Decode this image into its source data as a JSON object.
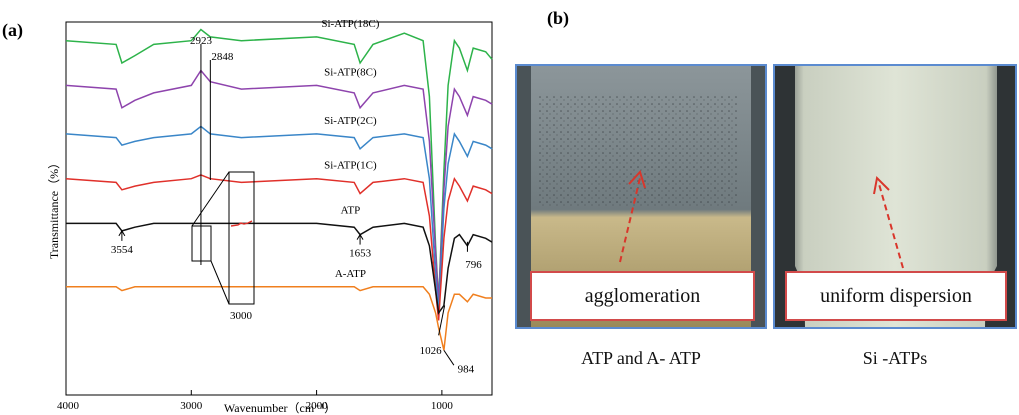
{
  "panel_a_label": "(a)",
  "panel_b_label": "(b)",
  "colors": {
    "Si-ATP(18C)": "#2db34a",
    "Si-ATP(8C)": "#8e44ad",
    "Si-ATP(2C)": "#3a86c8",
    "Si-ATP(1C)": "#e0302a",
    "ATP": "#111111",
    "A-ATP": "#f07f1e",
    "photo_border": "#5b8bd0",
    "callout_border": "#d24a4a"
  },
  "chart_data": {
    "type": "line",
    "xlabel": "Wavenumber（cm⁻¹）",
    "ylabel": "Transmittance（%）",
    "xlim": [
      4000,
      600
    ],
    "x_ticks": [
      "4000",
      "3000",
      "2000",
      "1000"
    ],
    "y_ticks_shown": false,
    "series": [
      {
        "name": "Si-ATP(18C)",
        "values": [
          [
            4000,
            0.95
          ],
          [
            3600,
            0.94
          ],
          [
            3554,
            0.89
          ],
          [
            3450,
            0.91
          ],
          [
            3300,
            0.94
          ],
          [
            3000,
            0.95
          ],
          [
            2923,
            0.98
          ],
          [
            2848,
            0.96
          ],
          [
            2600,
            0.95
          ],
          [
            2000,
            0.96
          ],
          [
            1700,
            0.94
          ],
          [
            1653,
            0.89
          ],
          [
            1550,
            0.94
          ],
          [
            1300,
            0.97
          ],
          [
            1150,
            0.95
          ],
          [
            1100,
            0.8
          ],
          [
            1050,
            0.4
          ],
          [
            1026,
            0.25
          ],
          [
            984,
            0.6
          ],
          [
            950,
            0.83
          ],
          [
            900,
            0.95
          ],
          [
            860,
            0.93
          ],
          [
            796,
            0.87
          ],
          [
            750,
            0.93
          ],
          [
            650,
            0.92
          ],
          [
            600,
            0.9
          ]
        ]
      },
      {
        "name": "Si-ATP(8C)",
        "values": [
          [
            4000,
            0.83
          ],
          [
            3600,
            0.82
          ],
          [
            3554,
            0.77
          ],
          [
            3450,
            0.79
          ],
          [
            3300,
            0.81
          ],
          [
            3000,
            0.83
          ],
          [
            2923,
            0.87
          ],
          [
            2848,
            0.84
          ],
          [
            2600,
            0.82
          ],
          [
            2000,
            0.83
          ],
          [
            1700,
            0.81
          ],
          [
            1653,
            0.77
          ],
          [
            1550,
            0.81
          ],
          [
            1300,
            0.83
          ],
          [
            1150,
            0.82
          ],
          [
            1100,
            0.68
          ],
          [
            1050,
            0.38
          ],
          [
            1026,
            0.25
          ],
          [
            984,
            0.55
          ],
          [
            950,
            0.72
          ],
          [
            900,
            0.82
          ],
          [
            860,
            0.8
          ],
          [
            796,
            0.75
          ],
          [
            750,
            0.8
          ],
          [
            650,
            0.79
          ],
          [
            600,
            0.78
          ]
        ]
      },
      {
        "name": "Si-ATP(2C)",
        "values": [
          [
            4000,
            0.7
          ],
          [
            3600,
            0.69
          ],
          [
            3554,
            0.67
          ],
          [
            3450,
            0.68
          ],
          [
            3300,
            0.69
          ],
          [
            3000,
            0.7
          ],
          [
            2923,
            0.72
          ],
          [
            2848,
            0.7
          ],
          [
            2600,
            0.69
          ],
          [
            2000,
            0.7
          ],
          [
            1700,
            0.69
          ],
          [
            1653,
            0.66
          ],
          [
            1550,
            0.69
          ],
          [
            1300,
            0.7
          ],
          [
            1150,
            0.69
          ],
          [
            1100,
            0.58
          ],
          [
            1050,
            0.32
          ],
          [
            1026,
            0.22
          ],
          [
            984,
            0.5
          ],
          [
            950,
            0.62
          ],
          [
            900,
            0.7
          ],
          [
            860,
            0.68
          ],
          [
            796,
            0.64
          ],
          [
            750,
            0.68
          ],
          [
            650,
            0.67
          ],
          [
            600,
            0.66
          ]
        ]
      },
      {
        "name": "Si-ATP(1C)",
        "values": [
          [
            4000,
            0.58
          ],
          [
            3600,
            0.57
          ],
          [
            3554,
            0.55
          ],
          [
            3450,
            0.56
          ],
          [
            3300,
            0.57
          ],
          [
            3000,
            0.58
          ],
          [
            2923,
            0.59
          ],
          [
            2848,
            0.58
          ],
          [
            2600,
            0.57
          ],
          [
            2000,
            0.58
          ],
          [
            1700,
            0.57
          ],
          [
            1653,
            0.54
          ],
          [
            1550,
            0.57
          ],
          [
            1300,
            0.58
          ],
          [
            1150,
            0.57
          ],
          [
            1100,
            0.48
          ],
          [
            1050,
            0.28
          ],
          [
            1026,
            0.2
          ],
          [
            984,
            0.42
          ],
          [
            950,
            0.52
          ],
          [
            900,
            0.58
          ],
          [
            860,
            0.56
          ],
          [
            796,
            0.52
          ],
          [
            750,
            0.56
          ],
          [
            650,
            0.55
          ],
          [
            600,
            0.54
          ]
        ]
      },
      {
        "name": "ATP",
        "values": [
          [
            4000,
            0.46
          ],
          [
            3600,
            0.46
          ],
          [
            3554,
            0.44
          ],
          [
            3450,
            0.45
          ],
          [
            3300,
            0.46
          ],
          [
            3000,
            0.46
          ],
          [
            2923,
            0.46
          ],
          [
            2848,
            0.46
          ],
          [
            2600,
            0.46
          ],
          [
            2000,
            0.46
          ],
          [
            1700,
            0.45
          ],
          [
            1653,
            0.43
          ],
          [
            1550,
            0.45
          ],
          [
            1300,
            0.46
          ],
          [
            1150,
            0.45
          ],
          [
            1100,
            0.4
          ],
          [
            1050,
            0.28
          ],
          [
            1026,
            0.22
          ],
          [
            984,
            0.24
          ],
          [
            950,
            0.34
          ],
          [
            900,
            0.42
          ],
          [
            860,
            0.43
          ],
          [
            796,
            0.4
          ],
          [
            750,
            0.43
          ],
          [
            650,
            0.42
          ],
          [
            600,
            0.41
          ]
        ]
      },
      {
        "name": "A-ATP",
        "values": [
          [
            4000,
            0.29
          ],
          [
            3600,
            0.29
          ],
          [
            3554,
            0.28
          ],
          [
            3450,
            0.29
          ],
          [
            3300,
            0.29
          ],
          [
            3000,
            0.29
          ],
          [
            2923,
            0.29
          ],
          [
            2848,
            0.29
          ],
          [
            2600,
            0.29
          ],
          [
            2000,
            0.29
          ],
          [
            1700,
            0.29
          ],
          [
            1653,
            0.28
          ],
          [
            1550,
            0.29
          ],
          [
            1300,
            0.29
          ],
          [
            1150,
            0.29
          ],
          [
            1100,
            0.27
          ],
          [
            1050,
            0.22
          ],
          [
            1026,
            0.18
          ],
          [
            984,
            0.12
          ],
          [
            950,
            0.22
          ],
          [
            900,
            0.27
          ],
          [
            860,
            0.27
          ],
          [
            796,
            0.25
          ],
          [
            750,
            0.27
          ],
          [
            650,
            0.26
          ],
          [
            600,
            0.26
          ]
        ]
      }
    ],
    "series_labels": [
      "Si-ATP(18C)",
      "Si-ATP(8C)",
      "Si-ATP(2C)",
      "Si-ATP(1C)",
      "ATP",
      "A-ATP"
    ],
    "annotations": [
      "2923",
      "2848",
      "3554",
      "1653",
      "3000",
      "796",
      "1026",
      "984"
    ]
  },
  "photos": {
    "left": {
      "callout": "agglomeration",
      "caption": "ATP and A- ATP"
    },
    "right": {
      "callout": "uniform dispersion",
      "caption": "Si -ATPs"
    }
  }
}
